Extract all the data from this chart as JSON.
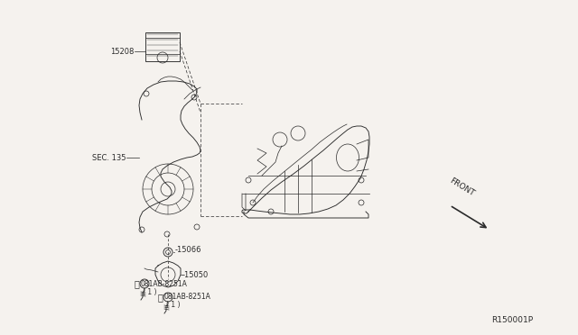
{
  "bg_color": "#f0ede8",
  "fig_width": 6.4,
  "fig_height": 3.72,
  "dpi": 100,
  "line_color": "#2a2a2a",
  "text_color": "#2a2a2a",
  "font_size_small": 6.0,
  "font_size_ref": 6.5,
  "labels": {
    "part_15208": "15208",
    "sec_135": "SEC. 135",
    "part_15066": "o–15066",
    "part_15030": "–15050",
    "bolt_b_left_line1": "B 081AB-8251A",
    "bolt_b_left_line2": "( 1 )",
    "bolt_b_right_line1": "B 081AB-8251A",
    "bolt_b_right_line2": "( 1 )",
    "front": "FRONT",
    "ref": "R150001P"
  }
}
